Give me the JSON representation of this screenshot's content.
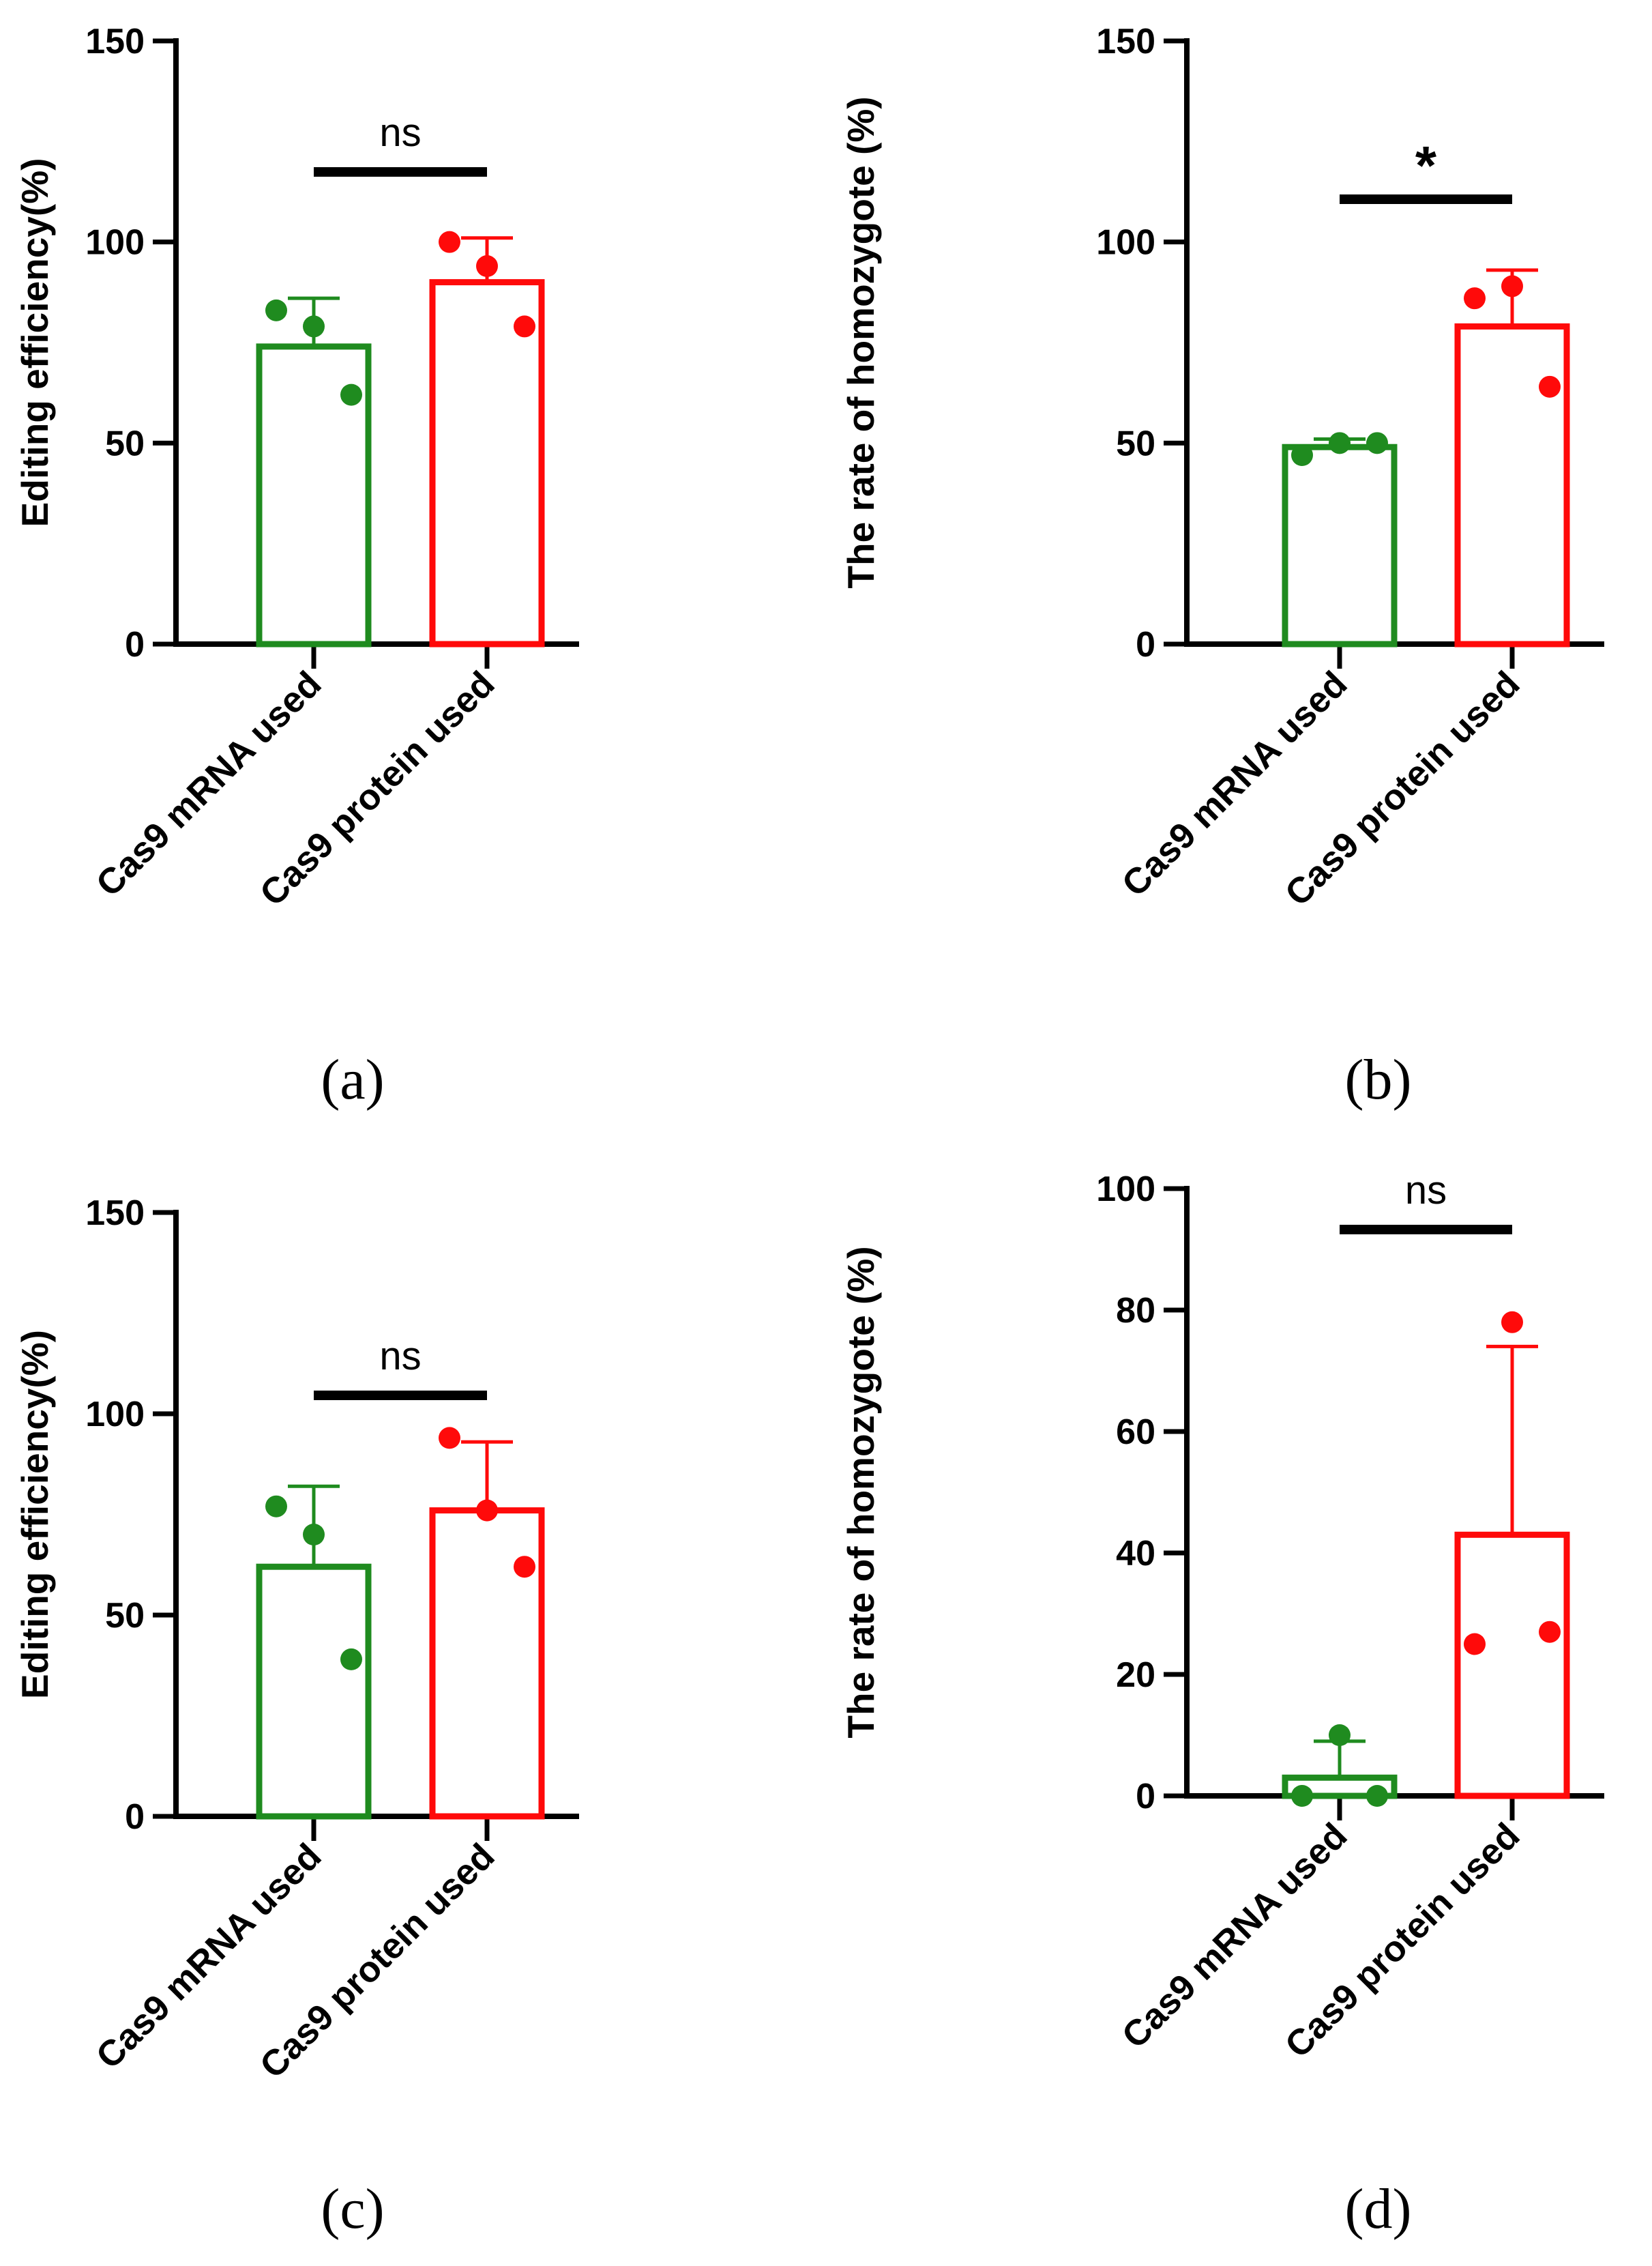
{
  "colors": {
    "mrna": "#1f8b1f",
    "protein": "#ff0a0a",
    "axis": "#000000"
  },
  "chart_data": [
    {
      "type": "bar",
      "panel_label": "(a)",
      "categories": [
        "Cas9 mRNA used",
        "Cas9 protein used"
      ],
      "ylabel": "Editing efficiency(%)",
      "ylim": [
        0,
        150
      ],
      "yticks": [
        "0",
        "50",
        "100",
        "150"
      ],
      "series": [
        {
          "values": [
            74,
            90
          ],
          "sd": [
            12,
            11
          ],
          "points": [
            [
              83,
              79,
              62
            ],
            [
              100,
              94,
              79
            ]
          ]
        }
      ],
      "significance": "ns"
    },
    {
      "type": "bar",
      "panel_label": "(b)",
      "categories": [
        "Cas9 mRNA used",
        "Cas9 protein used"
      ],
      "ylabel": "The rate of homozygote (%)",
      "ylim": [
        0,
        150
      ],
      "yticks": [
        "0",
        "50",
        "100",
        "150"
      ],
      "series": [
        {
          "values": [
            49,
            79
          ],
          "sd": [
            2,
            14
          ],
          "points": [
            [
              47,
              50,
              50
            ],
            [
              86,
              89,
              64
            ]
          ]
        }
      ],
      "significance": "*"
    },
    {
      "type": "bar",
      "panel_label": "(c)",
      "categories": [
        "Cas9 mRNA used",
        "Cas9 protein used"
      ],
      "ylabel": "Editing efficiency(%)",
      "ylim": [
        0,
        150
      ],
      "yticks": [
        "0",
        "50",
        "100",
        "150"
      ],
      "series": [
        {
          "values": [
            62,
            76
          ],
          "sd": [
            20,
            17
          ],
          "points": [
            [
              77,
              70,
              39
            ],
            [
              94,
              76,
              62
            ]
          ]
        }
      ],
      "significance": "ns"
    },
    {
      "type": "bar",
      "panel_label": "(d)",
      "categories": [
        "Cas9 mRNA used",
        "Cas9 protein used"
      ],
      "ylabel": "The rate of homozygote (%)",
      "ylim": [
        0,
        100
      ],
      "yticks": [
        "0",
        "20",
        "40",
        "60",
        "80",
        "100"
      ],
      "series": [
        {
          "values": [
            3,
            43
          ],
          "sd": [
            6,
            31
          ],
          "points": [
            [
              0,
              10,
              0
            ],
            [
              25,
              78,
              27
            ]
          ]
        }
      ],
      "significance": "ns"
    }
  ]
}
